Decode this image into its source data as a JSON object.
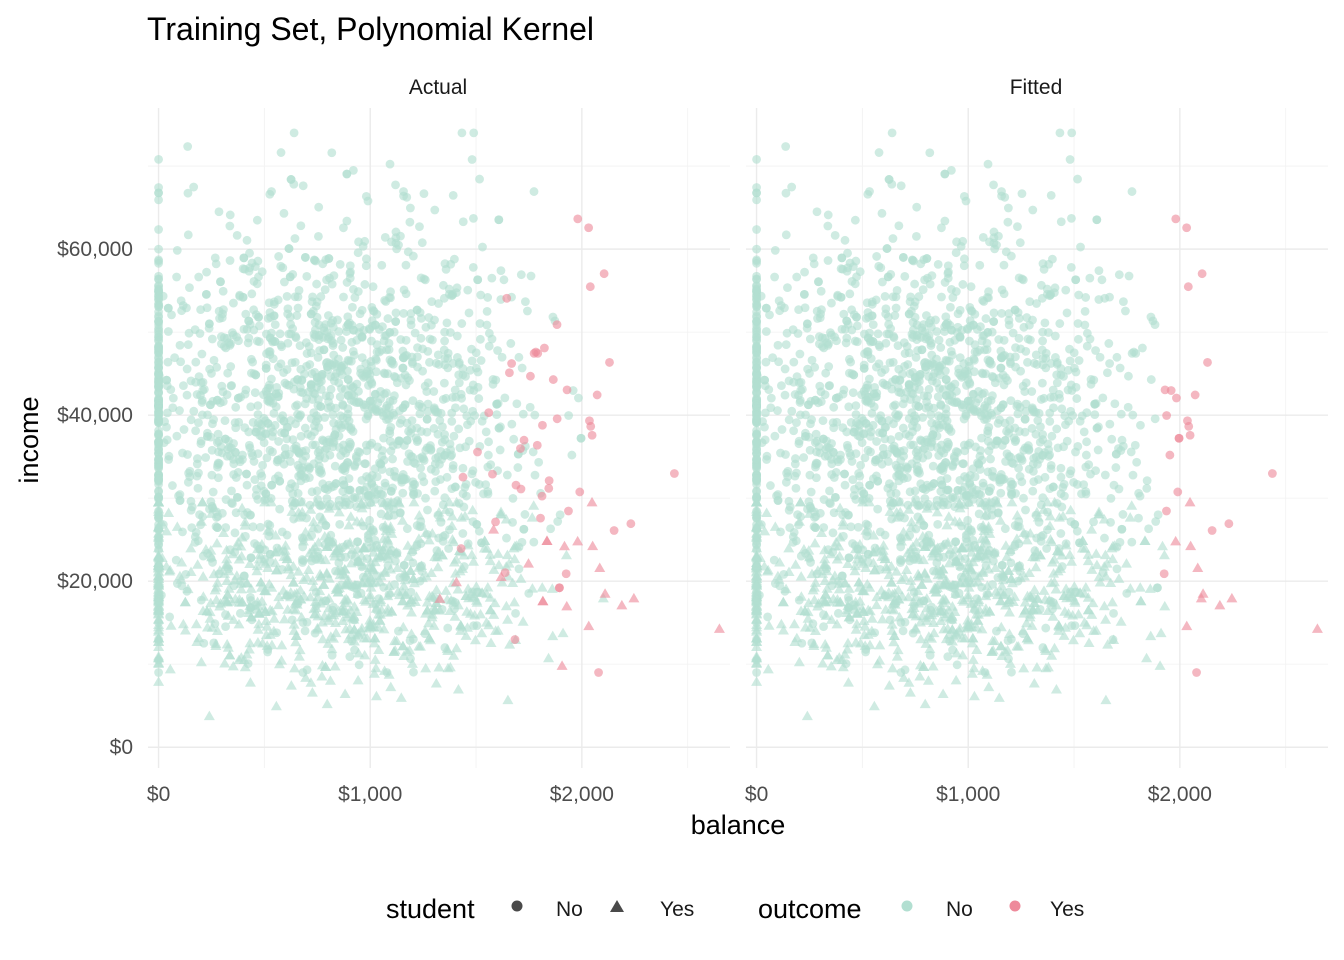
{
  "chart_data": {
    "type": "scatter",
    "title": "Training Set, Polynomial Kernel",
    "xlabel": "balance",
    "ylabel": "income",
    "xlim": [
      -50,
      2700
    ],
    "ylim": [
      -2500,
      77000
    ],
    "x_ticks": [
      0,
      1000,
      2000
    ],
    "x_tick_labels": [
      "$0",
      "$1,000",
      "$2,000"
    ],
    "y_ticks": [
      0,
      20000,
      40000,
      60000
    ],
    "y_tick_labels": [
      "$0",
      "$20,000",
      "$40,000",
      "$60,000"
    ],
    "grid": true,
    "legend_position": "bottom",
    "panels": [
      {
        "name": "Actual"
      },
      {
        "name": "Fitted"
      }
    ],
    "legend": {
      "shape": {
        "title": "student",
        "entries": [
          "No",
          "Yes"
        ]
      },
      "color": {
        "title": "outcome",
        "entries": [
          "No",
          "Yes"
        ]
      }
    },
    "colors": {
      "No": "#b2dfd1",
      "Yes": "#ee8a9b"
    },
    "series_summary": {
      "student_No": {
        "income_range": [
          9000,
          74000
        ],
        "balance_range": [
          0,
          2500
        ]
      },
      "student_Yes": {
        "income_range": [
          700,
          29000
        ],
        "balance_range": [
          0,
          2600
        ]
      }
    }
  }
}
